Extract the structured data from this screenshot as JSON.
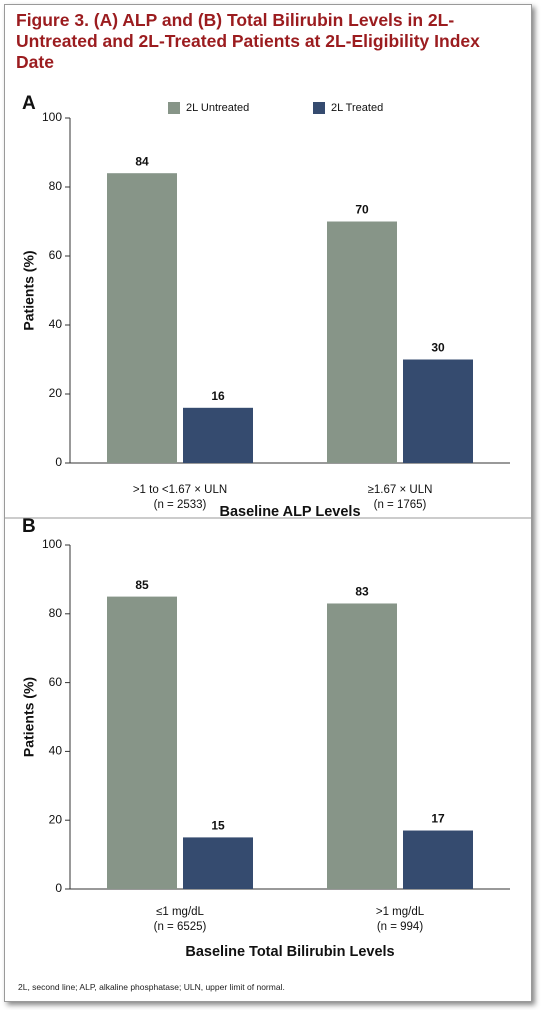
{
  "title": "Figure 3. (A) ALP and (B) Total Bilirubin Levels in 2L-Untreated and 2L-Treated Patients at 2L-Eligibility Index Date",
  "footnote": "2L, second line; ALP, alkaline phosphatase; ULN, upper limit of normal.",
  "chart_data": [
    {
      "type": "bar",
      "panel": "A",
      "y_label": "Patients (%)",
      "x_label": "Baseline ALP Levels",
      "categories": [
        ">1 to <1.67 × ULN",
        "≥1.67 × ULN"
      ],
      "category_counts": [
        "(n = 2533)",
        "(n = 1765)"
      ],
      "series": [
        {
          "name": "2L Untreated",
          "color": "#879588",
          "values": [
            84,
            70
          ]
        },
        {
          "name": "2L Treated",
          "color": "#354b6f",
          "values": [
            16,
            30
          ]
        }
      ],
      "ylim": [
        0,
        100
      ],
      "yticks": [
        0,
        20,
        40,
        60,
        80,
        100
      ],
      "legend": "top"
    },
    {
      "type": "bar",
      "panel": "B",
      "y_label": "Patients (%)",
      "x_label": "Baseline Total Bilirubin Levels",
      "categories": [
        "≤1 mg/dL",
        ">1 mg/dL"
      ],
      "category_counts": [
        "(n = 6525)",
        "(n = 994)"
      ],
      "series": [
        {
          "color": "#879588",
          "values": [
            85,
            83
          ]
        },
        {
          "color": "#354b6f",
          "values": [
            15,
            17
          ]
        }
      ],
      "ylim": [
        0,
        100
      ],
      "yticks": [
        0,
        20,
        40,
        60,
        80,
        100
      ]
    }
  ]
}
